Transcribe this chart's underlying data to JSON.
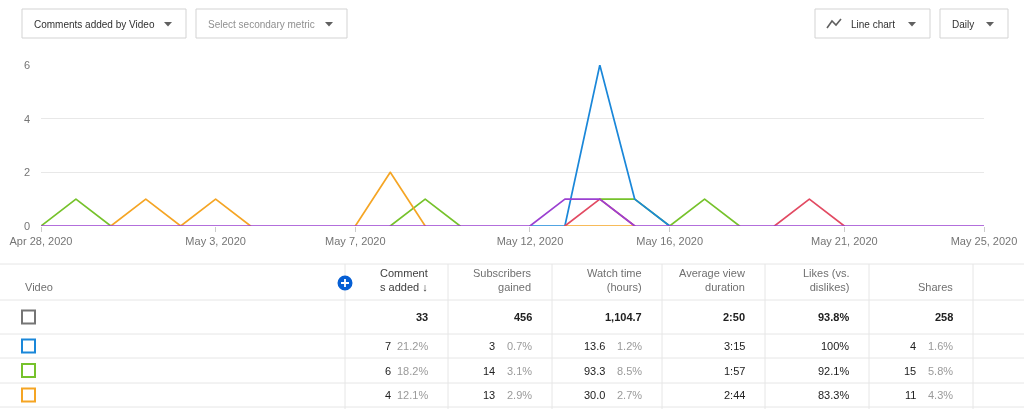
{
  "chart_data": [
    {
      "type": "line",
      "x": [
        "2020-04-28",
        "2020-04-29",
        "2020-04-30",
        "2020-05-01",
        "2020-05-02",
        "2020-05-03",
        "2020-05-04",
        "2020-05-05",
        "2020-05-06",
        "2020-05-07",
        "2020-05-08",
        "2020-05-09",
        "2020-05-10",
        "2020-05-11",
        "2020-05-12",
        "2020-05-13",
        "2020-05-14",
        "2020-05-15",
        "2020-05-16",
        "2020-05-17",
        "2020-05-18",
        "2020-05-19",
        "2020-05-20",
        "2020-05-21",
        "2020-05-22",
        "2020-05-23",
        "2020-05-24",
        "2020-05-25"
      ],
      "series": [
        {
          "color": "#76c22b",
          "values": [
            0,
            1,
            0,
            null,
            null,
            null,
            null,
            null,
            null,
            null,
            0,
            1,
            0,
            null,
            null,
            null,
            1,
            1,
            0,
            1,
            0,
            null,
            null,
            null,
            null,
            null,
            null,
            null
          ]
        },
        {
          "color": "#f5a524",
          "values": [
            null,
            null,
            0,
            1,
            0,
            1,
            0,
            null,
            null,
            0,
            2,
            0,
            null,
            null,
            null,
            0,
            0,
            0,
            null,
            null,
            null,
            null,
            null,
            null,
            null,
            null,
            null,
            null
          ]
        },
        {
          "color": "#1a87d9",
          "values": [
            null,
            null,
            null,
            null,
            null,
            null,
            null,
            null,
            null,
            null,
            null,
            null,
            null,
            null,
            0,
            0,
            6,
            1,
            0,
            null,
            null,
            null,
            null,
            null,
            null,
            null,
            null,
            null
          ]
        },
        {
          "color": "#e24a62",
          "values": [
            null,
            null,
            null,
            null,
            null,
            null,
            null,
            null,
            null,
            null,
            null,
            null,
            null,
            null,
            null,
            0,
            1,
            0,
            null,
            null,
            null,
            0,
            1,
            0,
            null,
            null,
            null,
            null
          ]
        },
        {
          "color": "#9b40d1",
          "values": [
            0,
            0,
            0,
            0,
            0,
            0,
            0,
            0,
            0,
            0,
            0,
            0,
            0,
            0,
            0,
            1,
            1,
            0,
            0,
            0,
            0,
            0,
            0,
            0,
            0,
            0,
            0,
            0
          ]
        }
      ],
      "xlim": [
        "2020-04-28",
        "2020-05-25"
      ],
      "xticks": [
        {
          "value": "2020-04-28",
          "label": "Apr 28, 2020"
        },
        {
          "value": "2020-05-03",
          "label": "May 3, 2020"
        },
        {
          "value": "2020-05-07",
          "label": "May 7, 2020"
        },
        {
          "value": "2020-05-12",
          "label": "May 12, 2020"
        },
        {
          "value": "2020-05-16",
          "label": "May 16, 2020"
        },
        {
          "value": "2020-05-21",
          "label": "May 21, 2020"
        },
        {
          "value": "2020-05-25",
          "label": "May 25, 2020"
        }
      ],
      "ylim": [
        0,
        6
      ],
      "yticks": [
        0,
        2,
        4,
        6
      ],
      "grid": "y",
      "line_style": "solid",
      "annotations": [
        "Comments added by Video",
        "Select secondary metric",
        "Line chart",
        "Daily"
      ]
    },
    {
      "type": "other",
      "categories": [
        "Video",
        "Comment\ns added ↓",
        "Subscribers\ngained",
        "Watch time\n(hours)",
        "Average view\nduration",
        "Likes (vs.\ndislikes)",
        "Shares"
      ],
      "cell_labels": [
        [
          null,
          "33",
          "456",
          "1,104.7",
          "2:50",
          "93.8%",
          "258"
        ],
        [
          null,
          "7 21.2%",
          "3 0.7%",
          "13.6 1.2%",
          "3:15",
          "100%",
          "4 1.6%"
        ],
        [
          null,
          "6 18.2%",
          "14 3.1%",
          "93.3 8.5%",
          "1:57",
          "92.1%",
          "15 5.8%"
        ],
        [
          null,
          "4 12.1%",
          "13 2.9%",
          "30.0 2.7%",
          "2:44",
          "83.3%",
          "11 4.3%"
        ]
      ],
      "colors": [
        "#757575",
        "#1a87d9",
        "#76c22b",
        "#f5a524"
      ]
    }
  ]
}
